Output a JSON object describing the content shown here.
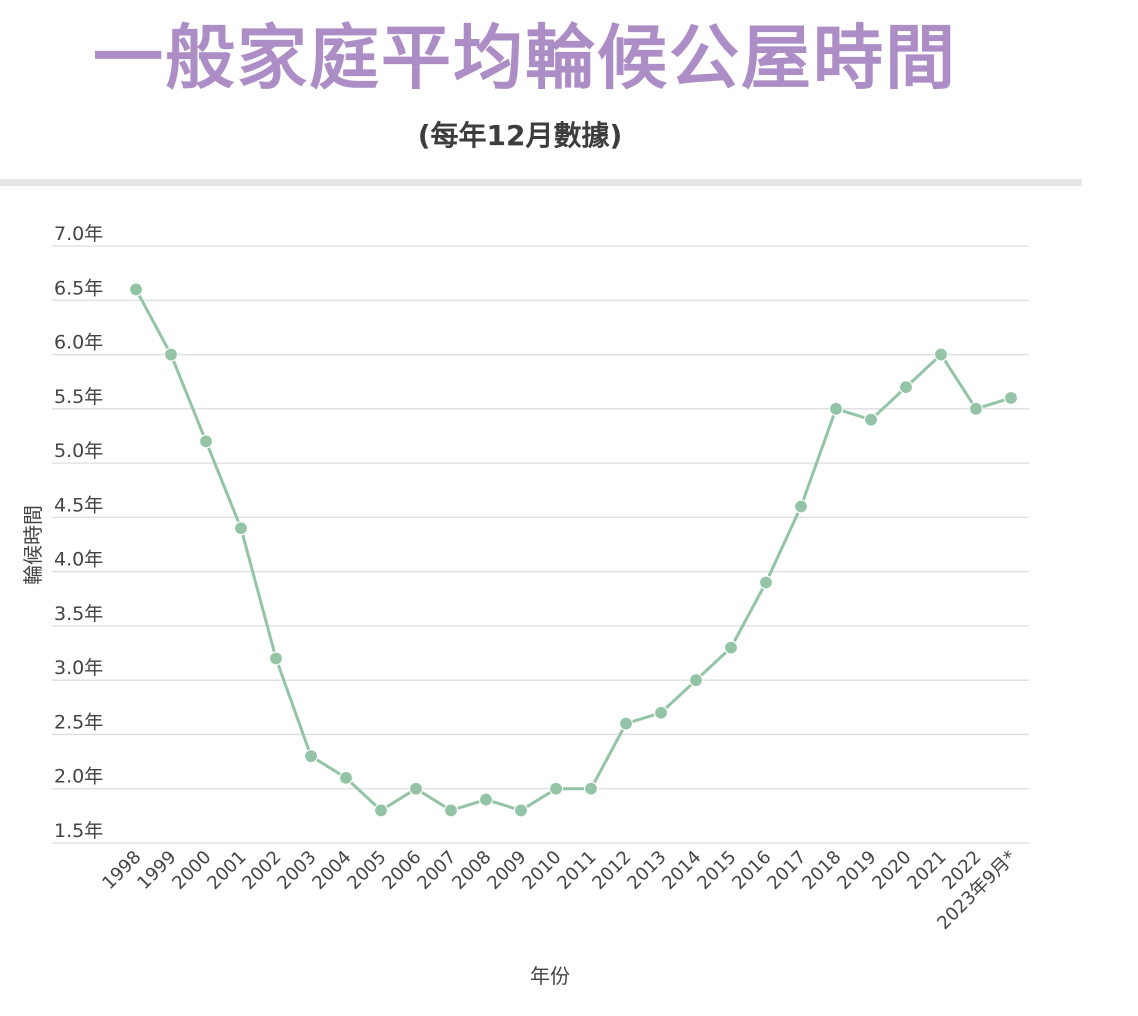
{
  "header": {
    "title": "一般家庭平均輪候公屋時間",
    "subtitle": "(每年12月數據)"
  },
  "chart_data": {
    "type": "line",
    "title": "一般家庭平均輪候公屋時間",
    "subtitle": "(每年12月數據)",
    "xlabel": "年份",
    "ylabel": "輪候時間",
    "categories": [
      "1998",
      "1999",
      "2000",
      "2001",
      "2002",
      "2003",
      "2004",
      "2005",
      "2006",
      "2007",
      "2008",
      "2009",
      "2010",
      "2011",
      "2012",
      "2013",
      "2014",
      "2015",
      "2016",
      "2017",
      "2018",
      "2019",
      "2020",
      "2021",
      "2022",
      "2023年9月*"
    ],
    "series": [
      {
        "values": [
          6.6,
          6.0,
          5.2,
          4.4,
          3.2,
          2.3,
          2.1,
          1.8,
          2.0,
          1.8,
          1.9,
          1.8,
          2.0,
          2.0,
          2.6,
          2.7,
          3.0,
          3.3,
          3.9,
          4.6,
          5.5,
          5.4,
          5.7,
          6.0,
          5.5,
          5.6
        ]
      }
    ],
    "ylim": [
      1.5,
      7.0
    ],
    "yticks": [
      "1.5年",
      "2.0年",
      "2.5年",
      "3.0年",
      "3.5年",
      "4.0年",
      "4.5年",
      "5.0年",
      "5.5年",
      "6.0年",
      "6.5年",
      "7.0年"
    ],
    "grid": true,
    "legend": "none",
    "colors": {
      "line": "#93c4a6",
      "grid": "#dddddd",
      "title": "#ad8dc6"
    }
  }
}
